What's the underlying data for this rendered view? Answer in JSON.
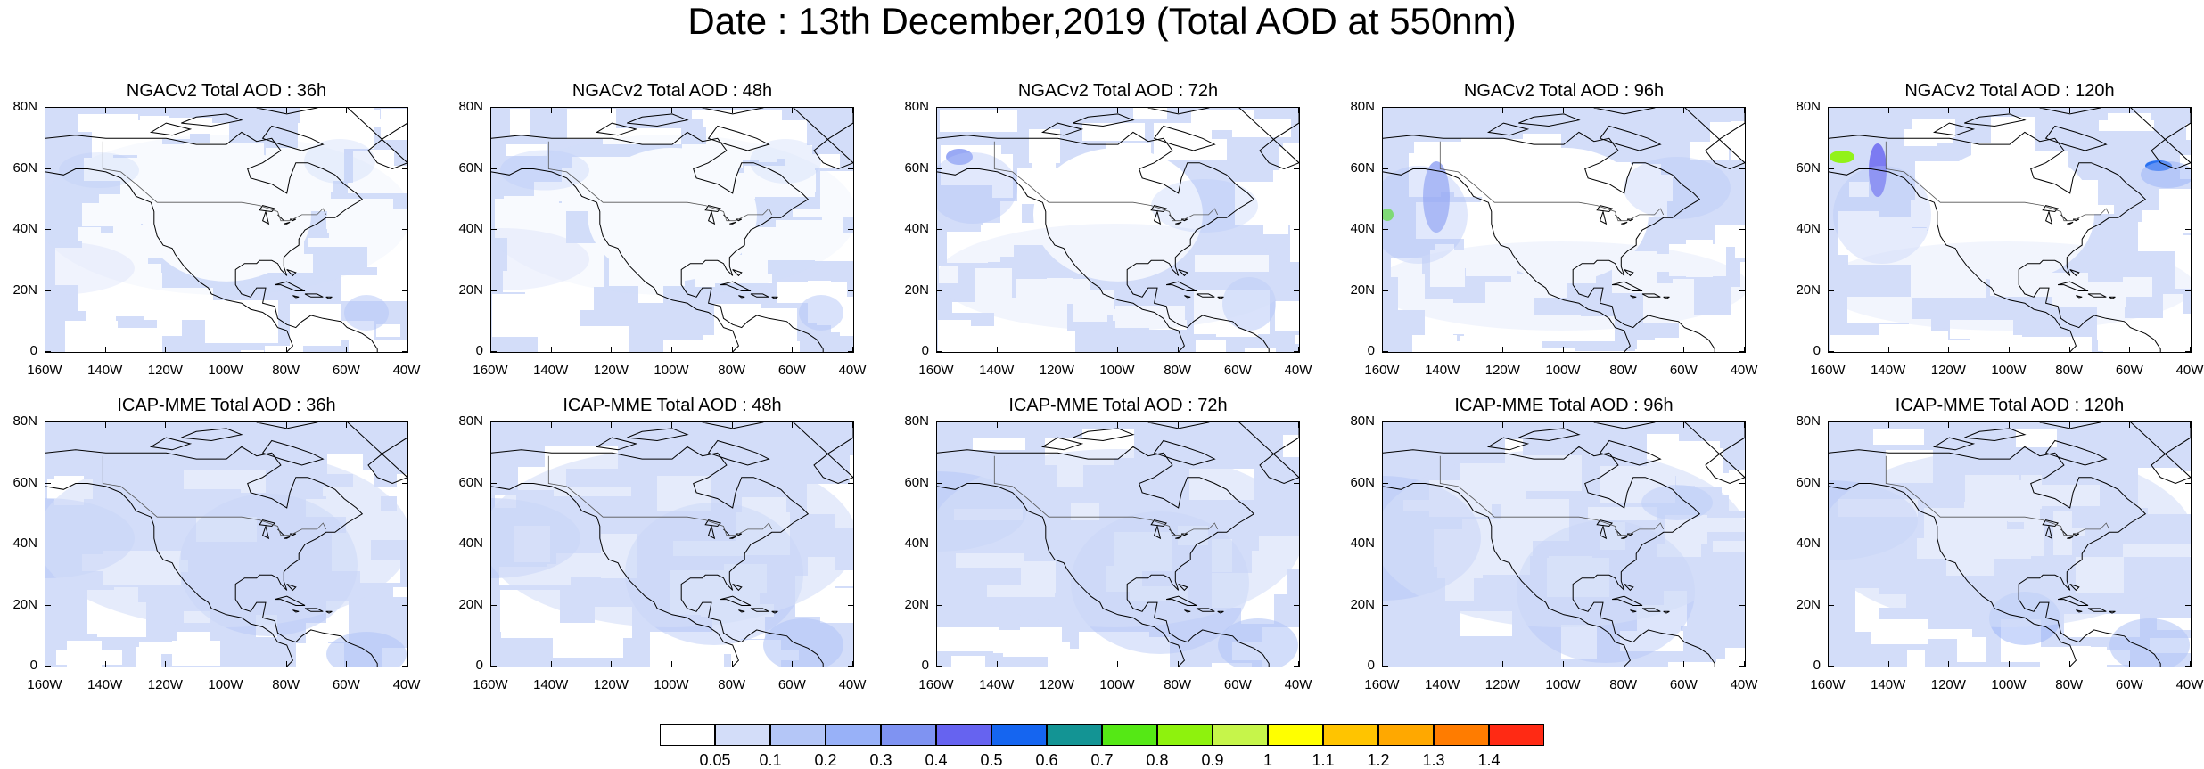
{
  "title": "Date : 13th December,2019 (Total AOD at 550nm)",
  "y_ticks": [
    "0",
    "20N",
    "40N",
    "60N",
    "80N"
  ],
  "x_ticks": [
    "160W",
    "140W",
    "120W",
    "100W",
    "80W",
    "60W",
    "40W"
  ],
  "panels": [
    {
      "title": "NGACv2 Total AOD : 36h",
      "model": "NGACv2",
      "lead": "36h"
    },
    {
      "title": "NGACv2 Total AOD : 48h",
      "model": "NGACv2",
      "lead": "48h"
    },
    {
      "title": "NGACv2 Total AOD : 72h",
      "model": "NGACv2",
      "lead": "72h"
    },
    {
      "title": "NGACv2 Total AOD : 96h",
      "model": "NGACv2",
      "lead": "96h"
    },
    {
      "title": "NGACv2 Total AOD : 120h",
      "model": "NGACv2",
      "lead": "120h"
    },
    {
      "title": "ICAP-MME Total AOD : 36h",
      "model": "ICAP-MME",
      "lead": "36h"
    },
    {
      "title": "ICAP-MME Total AOD : 48h",
      "model": "ICAP-MME",
      "lead": "48h"
    },
    {
      "title": "ICAP-MME Total AOD : 72h",
      "model": "ICAP-MME",
      "lead": "72h"
    },
    {
      "title": "ICAP-MME Total AOD : 96h",
      "model": "ICAP-MME",
      "lead": "96h"
    },
    {
      "title": "ICAP-MME Total AOD : 120h",
      "model": "ICAP-MME",
      "lead": "120h"
    }
  ],
  "colorbar": {
    "labels": [
      "0.05",
      "0.1",
      "0.2",
      "0.3",
      "0.4",
      "0.5",
      "0.6",
      "0.7",
      "0.8",
      "0.9",
      "1",
      "1.1",
      "1.2",
      "1.3",
      "1.4"
    ],
    "colors": [
      "#ffffff",
      "#d3ddf9",
      "#b4c6f7",
      "#98b1f8",
      "#7f93f2",
      "#6663f0",
      "#1565f0",
      "#139494",
      "#55e815",
      "#8ef20d",
      "#c6f54a",
      "#ffff00",
      "#ffc400",
      "#ffa800",
      "#ff7c00",
      "#ff2a14"
    ]
  }
}
